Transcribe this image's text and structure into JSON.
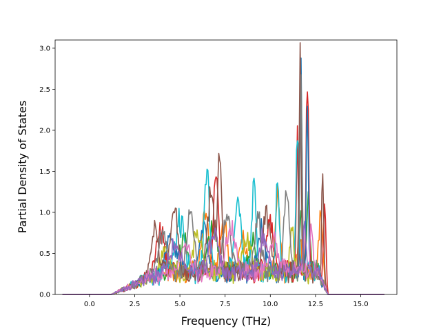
{
  "chart_data": {
    "type": "line",
    "title": "",
    "xlabel": "Frequency (THz)",
    "ylabel": "Partial Density of States",
    "xlim": [
      -1.9,
      17.0
    ],
    "ylim": [
      0.0,
      3.1
    ],
    "x_ticks": [
      "0.0",
      "2.5",
      "5.0",
      "7.5",
      "10.0",
      "12.5",
      "15.0"
    ],
    "y_ticks": [
      "0.0",
      "0.5",
      "1.0",
      "1.5",
      "2.0",
      "2.5",
      "3.0"
    ],
    "grid": false,
    "legend": "none",
    "x_step": 0.1,
    "x_start": -1.5,
    "series": [
      {
        "color": "#ff7f0e",
        "peaks": [
          [
            6.4,
            0.75,
            0.18
          ],
          [
            7.4,
            0.6,
            0.2
          ],
          [
            8.5,
            0.45,
            0.2
          ],
          [
            10.4,
            0.95,
            0.12
          ],
          [
            12.8,
            0.85,
            0.1
          ],
          [
            11.6,
            0.5,
            0.1
          ]
        ]
      },
      {
        "color": "#2ca02c",
        "peaks": [
          [
            5.2,
            0.4,
            0.2
          ],
          [
            6.8,
            0.5,
            0.25
          ],
          [
            9.0,
            0.35,
            0.2
          ],
          [
            11.7,
            0.7,
            0.08
          ],
          [
            12.1,
            0.9,
            0.08
          ]
        ]
      },
      {
        "color": "#d62728",
        "peaks": [
          [
            3.9,
            0.5,
            0.25
          ],
          [
            7.0,
            1.15,
            0.15
          ],
          [
            10.0,
            0.6,
            0.2
          ],
          [
            11.5,
            1.65,
            0.06
          ],
          [
            12.05,
            2.25,
            0.07
          ],
          [
            13.0,
            1.0,
            0.07
          ]
        ]
      },
      {
        "color": "#1f77b4",
        "peaks": [
          [
            4.5,
            0.35,
            0.3
          ],
          [
            6.3,
            0.6,
            0.2
          ],
          [
            9.5,
            0.5,
            0.2
          ],
          [
            11.7,
            2.9,
            0.05
          ],
          [
            12.05,
            2.4,
            0.05
          ]
        ]
      },
      {
        "color": "#17becf",
        "peaks": [
          [
            5.0,
            0.6,
            0.25
          ],
          [
            6.5,
            1.25,
            0.15
          ],
          [
            8.2,
            0.8,
            0.2
          ],
          [
            9.1,
            1.05,
            0.12
          ],
          [
            10.4,
            1.08,
            0.1
          ],
          [
            11.5,
            1.6,
            0.08
          ]
        ]
      },
      {
        "color": "#bcbd22",
        "peaks": [
          [
            4.2,
            0.3,
            0.25
          ],
          [
            6.0,
            0.45,
            0.25
          ],
          [
            8.8,
            0.4,
            0.25
          ],
          [
            11.2,
            0.55,
            0.1
          ]
        ]
      },
      {
        "color": "#8c564b",
        "peaks": [
          [
            3.6,
            0.6,
            0.2
          ],
          [
            4.7,
            0.8,
            0.18
          ],
          [
            6.7,
            0.95,
            0.2
          ],
          [
            7.2,
            1.38,
            0.1
          ],
          [
            9.8,
            0.7,
            0.2
          ],
          [
            11.65,
            2.93,
            0.05
          ],
          [
            12.9,
            1.3,
            0.06
          ]
        ]
      },
      {
        "color": "#7f7f7f",
        "peaks": [
          [
            4.0,
            0.45,
            0.25
          ],
          [
            5.6,
            0.7,
            0.2
          ],
          [
            7.6,
            0.75,
            0.2
          ],
          [
            9.3,
            0.65,
            0.2
          ],
          [
            10.9,
            0.9,
            0.15
          ],
          [
            11.7,
            2.2,
            0.06
          ]
        ]
      },
      {
        "color": "#e377c2",
        "peaks": [
          [
            5.3,
            0.35,
            0.25
          ],
          [
            7.8,
            0.5,
            0.25
          ],
          [
            10.2,
            0.4,
            0.2
          ],
          [
            12.3,
            0.6,
            0.08
          ]
        ]
      },
      {
        "color": "#9467bd",
        "peaks": [
          [
            4.8,
            0.3,
            0.3
          ],
          [
            6.9,
            0.45,
            0.25
          ],
          [
            9.6,
            0.4,
            0.25
          ],
          [
            11.9,
            0.5,
            0.08
          ]
        ]
      }
    ]
  }
}
